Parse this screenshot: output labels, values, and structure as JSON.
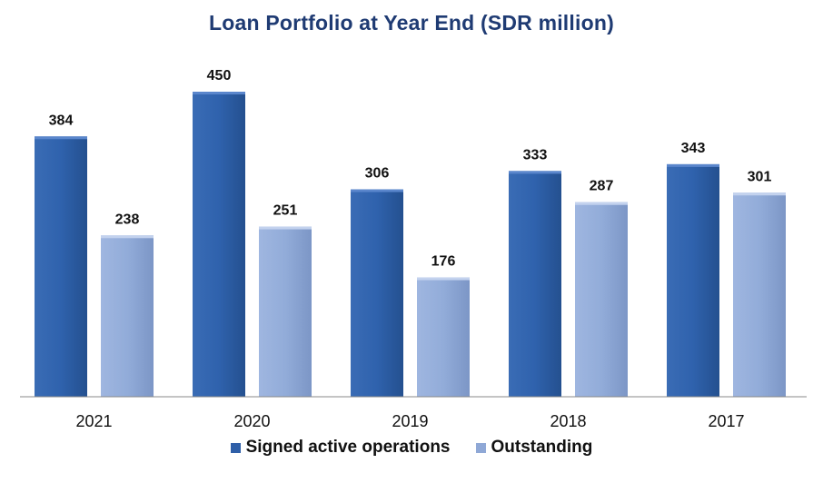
{
  "chart_data": {
    "type": "bar",
    "title": "Loan Portfolio at Year End (SDR million)",
    "xlabel": "",
    "ylabel": "",
    "categories": [
      "2021",
      "2020",
      "2019",
      "2018",
      "2017"
    ],
    "series": [
      {
        "name": "Signed active operations",
        "values": [
          384,
          450,
          306,
          333,
          343
        ],
        "color": "#2f5fa8"
      },
      {
        "name": "Outstanding",
        "values": [
          238,
          251,
          176,
          287,
          301
        ],
        "color": "#8fa8d6"
      }
    ],
    "ylim": [
      0,
      450
    ],
    "grid": false,
    "legend_position": "bottom"
  }
}
